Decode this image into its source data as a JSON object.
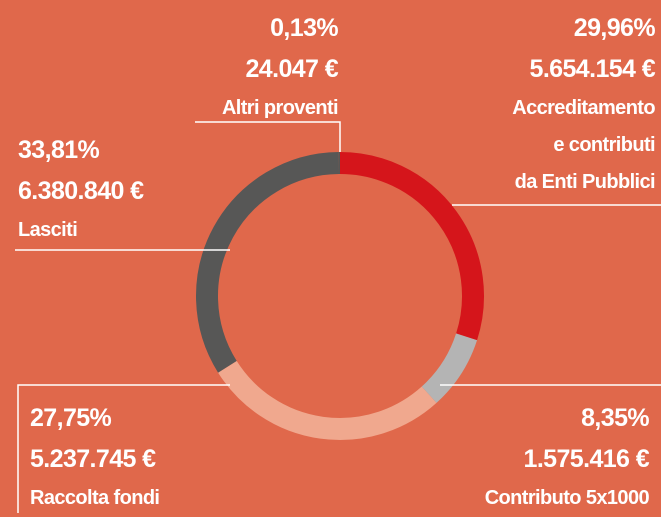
{
  "chart_data": {
    "type": "donut",
    "categories": [
      "Accreditamento\ne contributi\nda Enti Pubblici",
      "Contributo 5x1000",
      "Raccolta fondi",
      "Lasciti",
      "Altri proventi"
    ],
    "values": [
      29.96,
      8.35,
      27.75,
      33.81,
      0.13
    ],
    "value_labels": [
      "29,96%",
      "8,35%",
      "27,75%",
      "33,81%",
      "0,13%"
    ],
    "amounts": [
      5654154,
      1575416,
      5237745,
      6380840,
      24047
    ],
    "amount_labels": [
      "5.654.154 €",
      "1.575.416 €",
      "5.237.745 €",
      "6.380.840 €",
      "24.047 €"
    ],
    "colors": [
      "#d5151b",
      "#b4b4b4",
      "#f0a88e",
      "#575756",
      "#575756"
    ]
  }
}
